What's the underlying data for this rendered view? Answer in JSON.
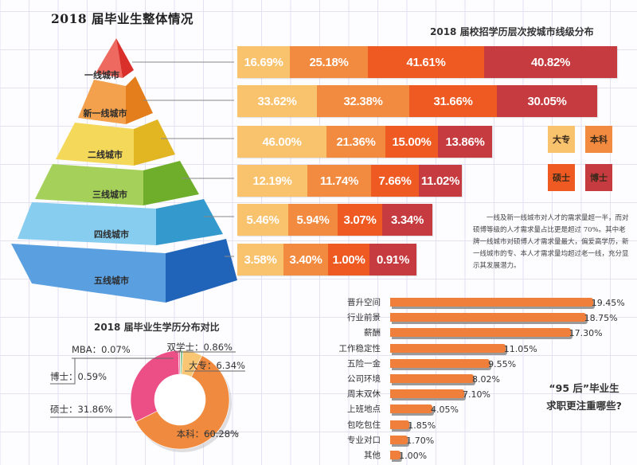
{
  "main_title": "2018 届毕业生整体情况",
  "chart_data": [
    {
      "type": "pyramid",
      "title": "2018 届毕业生整体情况",
      "levels": [
        "一线城市",
        "新一线城市",
        "二线城市",
        "三线城市",
        "四线城市",
        "五线城市"
      ],
      "colors": [
        "#e8453c",
        "#f0922e",
        "#f1cc3a",
        "#8cc63f",
        "#5ab4e0",
        "#2a7bd0"
      ]
    },
    {
      "type": "bar",
      "stacked": true,
      "orientation": "horizontal",
      "title": "2018 届校招学历层次按城市线级分布",
      "categories": [
        "一线城市",
        "新一线城市",
        "二线城市",
        "三线城市",
        "四线城市",
        "五线城市"
      ],
      "series": [
        {
          "name": "大专",
          "color": "#f9c26d",
          "values": [
            16.69,
            33.62,
            46.0,
            12.19,
            5.46,
            3.58
          ],
          "labels": [
            "16.69%",
            "33.62%",
            "46.00%",
            "12.19%",
            "5.46%",
            "3.58%"
          ]
        },
        {
          "name": "本科",
          "color": "#f28a3f",
          "values": [
            25.18,
            32.38,
            21.36,
            11.74,
            5.94,
            3.4
          ],
          "labels": [
            "25.18%",
            "32.38%",
            "21.36%",
            "11.74%",
            "5.94%",
            "3.40%"
          ]
        },
        {
          "name": "硕士",
          "color": "#ee5a22",
          "values": [
            41.61,
            31.66,
            15.0,
            7.66,
            3.07,
            1.0
          ],
          "labels": [
            "41.61%",
            "31.66%",
            "15.00%",
            "7.66%",
            "3.07%",
            "1.00%"
          ]
        },
        {
          "name": "博士",
          "color": "#c63b3f",
          "values": [
            40.82,
            30.05,
            13.86,
            11.02,
            3.34,
            0.91
          ],
          "labels": [
            "40.82%",
            "30.05%",
            "13.86%",
            "11.02%",
            "3.34%",
            "0.91%"
          ]
        }
      ],
      "legend": [
        "大专",
        "本科",
        "硕士",
        "博士"
      ],
      "legend_position": "right"
    },
    {
      "type": "pie",
      "donut": true,
      "title": "2018 届毕业生学历分布对比",
      "slices": [
        {
          "name": "双学士",
          "value": 0.86,
          "label": "双学士：0.86%",
          "color": "#8fc99a"
        },
        {
          "name": "大专",
          "value": 6.34,
          "label": "大专：6.34%",
          "color": "#f9c773"
        },
        {
          "name": "本科",
          "value": 60.28,
          "label": "本科：60.28%",
          "color": "#f08a3e"
        },
        {
          "name": "硕士",
          "value": 31.86,
          "label": "硕士：31.86%",
          "color": "#ec4f86"
        },
        {
          "name": "博士",
          "value": 0.59,
          "label": "博士：0.59%",
          "color": "#e86a9a"
        },
        {
          "name": "MBA",
          "value": 0.07,
          "label": "MBA：0.07%",
          "color": "#6fbf7a"
        }
      ]
    },
    {
      "type": "bar",
      "orientation": "horizontal",
      "title": "“95 后”毕业生求职更注重哪些?",
      "categories": [
        "晋升空间",
        "行业前景",
        "薪酬",
        "工作稳定性",
        "五险一金",
        "公司环境",
        "周末双休",
        "上班地点",
        "包吃包住",
        "专业对口",
        "其他"
      ],
      "values": [
        19.45,
        18.75,
        17.3,
        11.05,
        9.55,
        8.02,
        7.1,
        4.05,
        1.85,
        1.7,
        1.0
      ],
      "value_labels": [
        "19.45%",
        "18.75%",
        "17.30%",
        "11.05%",
        "9.55%",
        "8.02%",
        "7.10%",
        "4.05%",
        "1.85%",
        "1.70%",
        "1.00%"
      ],
      "color": "#f07f3c"
    }
  ],
  "note": "一线及新一线城市对人才的需求量超一半，而对硕博等级的人才需求量占比更是超过 70%。其中老牌一线城市对硕博人才需求量最大，偏爱高学历，新一线城市的专、本人才需求量均超过老一线，充分显示其发展潜力。",
  "question_line1": "“95 后”毕业生",
  "question_line2": "求职更注重哪些?"
}
